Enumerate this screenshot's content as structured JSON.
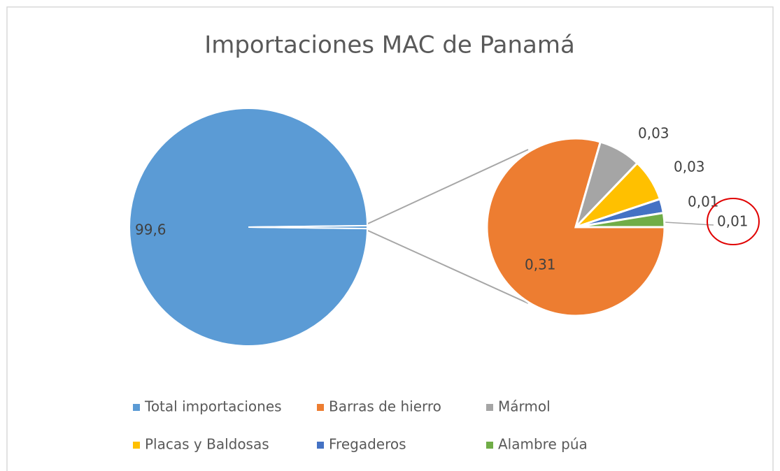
{
  "chart_data": {
    "type": "pie-of-pie",
    "title": "Importaciones MAC de Panamá",
    "categories": [
      "Total importaciones",
      "Barras de hierro",
      "Mármol",
      "Placas y Baldosas",
      "Fregaderos",
      "Alambre púa"
    ],
    "values": [
      99.6,
      0.31,
      0.03,
      0.03,
      0.01,
      0.01
    ],
    "value_labels": [
      "99,6",
      "0,31",
      "0,03",
      "0,03",
      "0,01",
      "0,01"
    ],
    "colors": [
      "#5B9BD5",
      "#ED7D31",
      "#A5A5A5",
      "#FFC000",
      "#4472C4",
      "#70AD47"
    ],
    "legend": "bottom"
  }
}
